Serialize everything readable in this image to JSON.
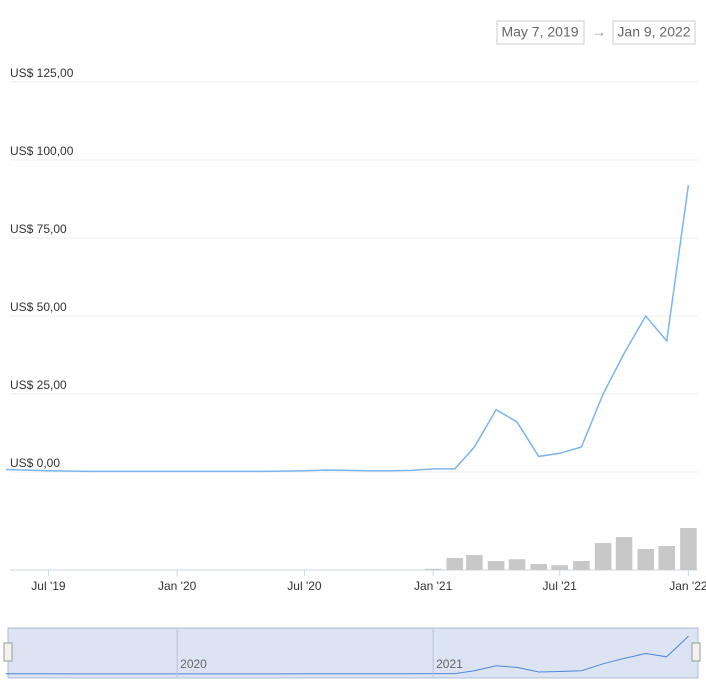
{
  "chart_data": {
    "type": "line",
    "range": {
      "start": "May 7, 2019",
      "separator": "→",
      "end": "Jan 9, 2022"
    },
    "x": [
      "2019-05",
      "2019-06",
      "2019-07",
      "2019-08",
      "2019-09",
      "2019-10",
      "2019-11",
      "2019-12",
      "2020-01",
      "2020-02",
      "2020-03",
      "2020-04",
      "2020-05",
      "2020-06",
      "2020-07",
      "2020-08",
      "2020-09",
      "2020-10",
      "2020-11",
      "2020-12",
      "2021-01",
      "2021-02",
      "2021-03",
      "2021-04",
      "2021-05",
      "2021-06",
      "2021-07",
      "2021-08",
      "2021-09",
      "2021-10",
      "2021-11",
      "2021-12",
      "2022-01"
    ],
    "series": [
      {
        "color": "#7cb5ec",
        "values": [
          0.8,
          0.6,
          0.4,
          0.3,
          0.2,
          0.2,
          0.2,
          0.2,
          0.2,
          0.2,
          0.2,
          0.2,
          0.2,
          0.3,
          0.4,
          0.6,
          0.5,
          0.4,
          0.4,
          0.5,
          1,
          1,
          8,
          20,
          16,
          5,
          6,
          8,
          25,
          38,
          50,
          42,
          92
        ]
      },
      {
        "color": "#c8c8c8",
        "axis": "y2",
        "values": [
          0,
          0,
          0,
          0,
          0,
          0,
          0,
          0,
          0,
          0,
          0,
          0,
          0,
          0,
          0,
          0,
          0,
          0,
          0,
          0,
          2,
          20,
          25,
          15,
          18,
          10,
          8,
          15,
          45,
          55,
          35,
          40,
          70
        ]
      }
    ],
    "xlim": [
      "2019-05-07",
      "2022-01-09"
    ],
    "xticks": [
      {
        "value": "2019-07",
        "label": "Jul '19"
      },
      {
        "value": "2020-01",
        "label": "Jan '20"
      },
      {
        "value": "2020-07",
        "label": "Jul '20"
      },
      {
        "value": "2021-01",
        "label": "Jan '21"
      },
      {
        "value": "2021-07",
        "label": "Jul '21"
      },
      {
        "value": "2022-01",
        "label": "Jan '22"
      }
    ],
    "ylim": [
      0,
      125
    ],
    "yticks": [
      {
        "value": 0,
        "label": "US$ 0,00"
      },
      {
        "value": 25,
        "label": "US$ 25,00"
      },
      {
        "value": 50,
        "label": "US$ 50,00"
      },
      {
        "value": 75,
        "label": "US$ 75,00"
      },
      {
        "value": 100,
        "label": "US$ 100,00"
      },
      {
        "value": 125,
        "label": "US$ 125,00"
      }
    ],
    "y2lim": [
      0,
      100
    ],
    "grid": true,
    "navigator": {
      "ticks": [
        {
          "value": "2020-01",
          "label": "2020"
        },
        {
          "value": "2021-01",
          "label": "2021"
        }
      ]
    }
  }
}
